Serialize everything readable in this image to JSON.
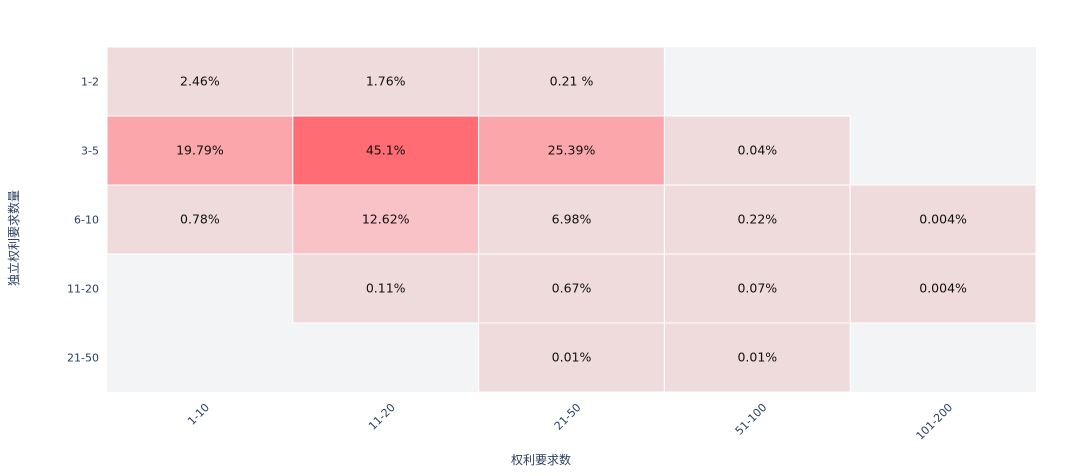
{
  "chart_data": {
    "type": "heatmap",
    "title": "",
    "xlabel": "权利要求数",
    "ylabel": "独立权利要求数量",
    "x_categories": [
      "1-10",
      "11-20",
      "21-50",
      "51-100",
      "101-200"
    ],
    "y_categories": [
      "1-2",
      "3-5",
      "6-10",
      "11-20",
      "21-50"
    ],
    "cells": [
      {
        "x": "1-10",
        "y": "1-2",
        "value": 2.46,
        "label": "2.46%"
      },
      {
        "x": "11-20",
        "y": "1-2",
        "value": 1.76,
        "label": "1.76%"
      },
      {
        "x": "21-50",
        "y": "1-2",
        "value": 0.21,
        "label": "0.21 %"
      },
      {
        "x": "1-10",
        "y": "3-5",
        "value": 19.79,
        "label": "19.79%"
      },
      {
        "x": "11-20",
        "y": "3-5",
        "value": 45.1,
        "label": "45.1%"
      },
      {
        "x": "21-50",
        "y": "3-5",
        "value": 25.39,
        "label": "25.39%"
      },
      {
        "x": "51-100",
        "y": "3-5",
        "value": 0.04,
        "label": "0.04%"
      },
      {
        "x": "1-10",
        "y": "6-10",
        "value": 0.78,
        "label": "0.78%"
      },
      {
        "x": "11-20",
        "y": "6-10",
        "value": 12.62,
        "label": "12.62%"
      },
      {
        "x": "21-50",
        "y": "6-10",
        "value": 6.98,
        "label": "6.98%"
      },
      {
        "x": "51-100",
        "y": "6-10",
        "value": 0.22,
        "label": "0.22%"
      },
      {
        "x": "101-200",
        "y": "6-10",
        "value": 0.004,
        "label": "0.004%"
      },
      {
        "x": "11-20",
        "y": "11-20",
        "value": 0.11,
        "label": "0.11%"
      },
      {
        "x": "21-50",
        "y": "11-20",
        "value": 0.67,
        "label": "0.67%"
      },
      {
        "x": "51-100",
        "y": "11-20",
        "value": 0.07,
        "label": "0.07%"
      },
      {
        "x": "101-200",
        "y": "11-20",
        "value": 0.004,
        "label": "0.004%"
      },
      {
        "x": "21-50",
        "y": "21-50",
        "value": 0.01,
        "label": "0.01%"
      },
      {
        "x": "51-100",
        "y": "21-50",
        "value": 0.01,
        "label": "0.01%"
      }
    ],
    "colors": {
      "plot_background": "#f3f4f6",
      "cell_light": "#efdadc",
      "cell_mid": "#f8c2c6",
      "cell_strong": "#faa6aa",
      "cell_max": "#ff6c74",
      "cell_border": "#ffffff"
    },
    "legend": "none",
    "grid": false
  }
}
